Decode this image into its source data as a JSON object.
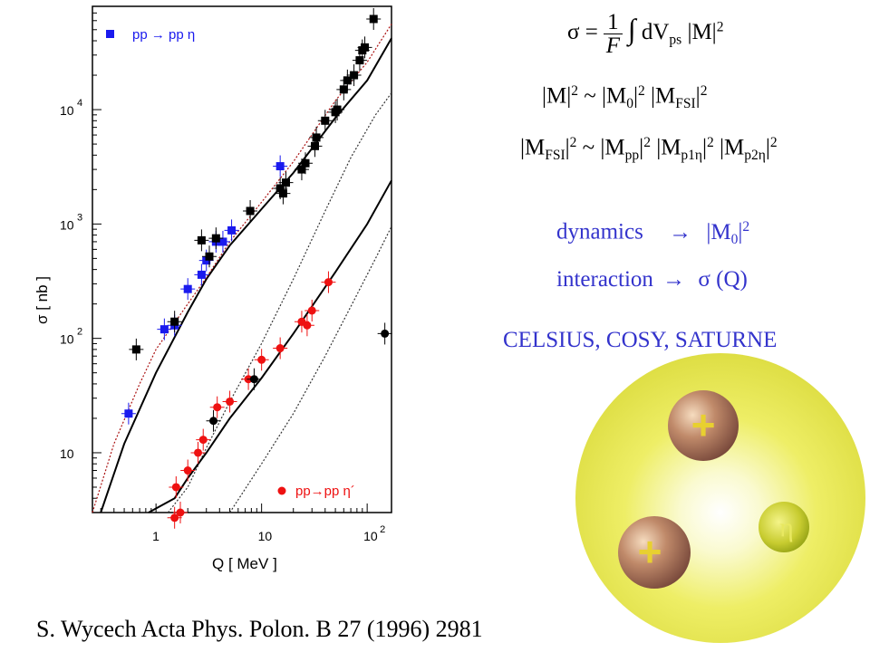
{
  "formulas": {
    "cross_section": {
      "lhs": "σ =",
      "frac_num": "1",
      "frac_den": "F",
      "integral": "∫",
      "rhs": "dV",
      "rhs_sub": "ps",
      "rhs_tail": "|M|",
      "rhs_sup": "2"
    },
    "amplitude": {
      "a": "|M|",
      "a_sup": "2",
      "tilde": "~ |M",
      "m0_sub": "0",
      "b_sup": "2",
      "c": "|M",
      "c_sub": "FSI",
      "c_sup": "2"
    },
    "fsi": {
      "a": "|M",
      "a_sub": "FSI",
      "a_sup": "2",
      "tilde": "~ |M",
      "pp_sub": "pp",
      "pp_sup": "2",
      "p1": "|M",
      "p1_sub": "p1η",
      "p1_sup": "2",
      "p2": "|M",
      "p2_sub": "p2η",
      "p2_sup": "2"
    }
  },
  "notes": {
    "dynamics_label": "dynamics",
    "dynamics_arrow": "→",
    "dynamics_value": "|M",
    "dynamics_sub": "0",
    "dynamics_sup": "2",
    "interaction_label": "interaction",
    "interaction_arrow": "→",
    "interaction_value": "σ (Q)",
    "experiments": "CELSIUS, COSY, SATURNE"
  },
  "reference": "S. Wycech Acta Phys. Polon.  B 27 (1996)  2981",
  "illustration": {
    "charge_symbol_1": "+",
    "charge_symbol_2": "+",
    "meson_symbol": "η"
  },
  "colors": {
    "eta_series": "#1a1aee",
    "eta_prime_series": "#ee1111",
    "black_data": "#000000",
    "annotation_blue": "#3333cc",
    "red_dotted_curve": "#aa1111"
  },
  "chart_data": {
    "type": "scatter",
    "xscale": "log",
    "yscale": "log",
    "xlim": [
      0.25,
      170
    ],
    "ylim": [
      3,
      80000
    ],
    "xlabel": "Q [ MeV ]",
    "ylabel": "σ [ nb ]",
    "xticks": [
      {
        "value": 1,
        "label": "1"
      },
      {
        "value": 10,
        "label": "10"
      },
      {
        "value": 100,
        "label": "10",
        "sup": "2"
      }
    ],
    "yticks": [
      {
        "value": 10,
        "label": "10",
        "sup": ""
      },
      {
        "value": 100,
        "label": "10",
        "sup": "2"
      },
      {
        "value": 1000,
        "label": "10",
        "sup": "3"
      },
      {
        "value": 10000,
        "label": "10",
        "sup": "4"
      }
    ],
    "legend": [
      {
        "label": "pp → pp η",
        "marker": "square",
        "color": "#1a1aee",
        "position": "top-left"
      },
      {
        "label": "pp→pp η´",
        "marker": "circle",
        "color": "#ee1111",
        "position": "bottom-right"
      }
    ],
    "series": [
      {
        "name": "pp → pp η",
        "marker": "square",
        "color": "#1a1aee",
        "points": [
          [
            0.55,
            22
          ],
          [
            1.2,
            120
          ],
          [
            1.5,
            130
          ],
          [
            2.0,
            270
          ],
          [
            2.7,
            360
          ],
          [
            3.0,
            480
          ],
          [
            3.7,
            700
          ],
          [
            4.3,
            700
          ],
          [
            5.2,
            880
          ],
          [
            15,
            3200
          ]
        ]
      },
      {
        "marker": "square",
        "color": "#000000",
        "points": [
          [
            0.65,
            80
          ],
          [
            1.5,
            140
          ],
          [
            2.7,
            720
          ],
          [
            3.2,
            520
          ],
          [
            3.7,
            750
          ],
          [
            7.8,
            1300
          ],
          [
            15,
            2050
          ],
          [
            16,
            1850
          ],
          [
            17,
            2300
          ],
          [
            24,
            3000
          ],
          [
            26,
            3400
          ],
          [
            32,
            4800
          ],
          [
            33,
            5700
          ],
          [
            40,
            8000
          ],
          [
            50,
            9500
          ],
          [
            52,
            10000
          ],
          [
            60,
            15000
          ],
          [
            65,
            18000
          ],
          [
            75,
            20000
          ],
          [
            85,
            27000
          ],
          [
            90,
            33000
          ],
          [
            95,
            35000
          ],
          [
            115,
            62000
          ]
        ]
      },
      {
        "name": "pp→pp η´",
        "marker": "circle",
        "color": "#ee1111",
        "points": [
          [
            1.5,
            2.7
          ],
          [
            1.55,
            5
          ],
          [
            1.7,
            3
          ],
          [
            2.0,
            7
          ],
          [
            2.5,
            10
          ],
          [
            2.8,
            13
          ],
          [
            3.8,
            25
          ],
          [
            5.0,
            28
          ],
          [
            7.5,
            44
          ],
          [
            10,
            65
          ],
          [
            15,
            82
          ],
          [
            24,
            140
          ],
          [
            27,
            130
          ],
          [
            30,
            175
          ],
          [
            43,
            310
          ]
        ]
      },
      {
        "marker": "circle",
        "color": "#000000",
        "points": [
          [
            3.5,
            19
          ],
          [
            8.5,
            44
          ],
          [
            147,
            110
          ]
        ]
      }
    ],
    "curves": [
      {
        "style": "solid",
        "color": "#000000",
        "points": [
          [
            0.3,
            2.2
          ],
          [
            0.5,
            12
          ],
          [
            1,
            50
          ],
          [
            2,
            170
          ],
          [
            3,
            330
          ],
          [
            5,
            650
          ],
          [
            10,
            1350
          ],
          [
            20,
            2800
          ],
          [
            50,
            8500
          ],
          [
            100,
            18000
          ],
          [
            170,
            42000
          ]
        ]
      },
      {
        "style": "dotted",
        "color": "#aa1111",
        "points": [
          [
            0.25,
            3
          ],
          [
            0.4,
            12
          ],
          [
            0.7,
            40
          ],
          [
            1,
            80
          ],
          [
            2,
            200
          ],
          [
            3,
            340
          ],
          [
            5,
            700
          ],
          [
            10,
            1550
          ],
          [
            20,
            3500
          ],
          [
            50,
            12000
          ],
          [
            100,
            26000
          ],
          [
            170,
            56000
          ]
        ]
      },
      {
        "style": "dotted",
        "color": "#333333",
        "points": [
          [
            1.3,
            2
          ],
          [
            2,
            5
          ],
          [
            3,
            11
          ],
          [
            5,
            28
          ],
          [
            10,
            90
          ],
          [
            20,
            330
          ],
          [
            40,
            1300
          ],
          [
            70,
            3800
          ],
          [
            120,
            9000
          ],
          [
            170,
            14000
          ]
        ]
      },
      {
        "style": "solid",
        "color": "#000000",
        "points": [
          [
            0.85,
            2
          ],
          [
            1.5,
            4
          ],
          [
            2,
            6
          ],
          [
            3,
            10
          ],
          [
            5,
            20
          ],
          [
            10,
            45
          ],
          [
            20,
            110
          ],
          [
            50,
            380
          ],
          [
            100,
            1000
          ],
          [
            170,
            2400
          ]
        ]
      },
      {
        "style": "dotted",
        "color": "#333333",
        "points": [
          [
            5,
            3
          ],
          [
            10,
            8
          ],
          [
            20,
            22
          ],
          [
            40,
            70
          ],
          [
            70,
            190
          ],
          [
            120,
            500
          ],
          [
            170,
            950
          ]
        ]
      }
    ]
  }
}
